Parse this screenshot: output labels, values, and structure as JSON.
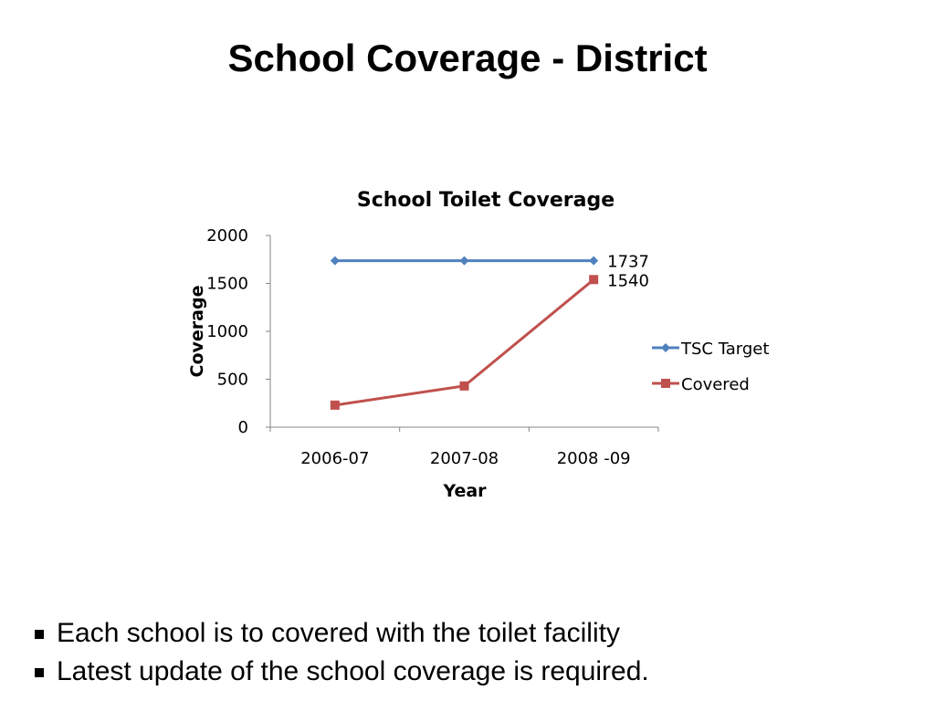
{
  "slide": {
    "title": "School Coverage - District"
  },
  "chart_data": {
    "type": "line",
    "title": "School Toilet Coverage",
    "xlabel": "Year",
    "ylabel": "Coverage",
    "categories": [
      "2006-07",
      "2007-08",
      "2008 -09"
    ],
    "ylim": [
      0,
      2000
    ],
    "yticks": [
      "0",
      "500",
      "1000",
      "1500",
      "2000"
    ],
    "grid": false,
    "legend_position": "right",
    "series": [
      {
        "name": "TSC Target",
        "values": [
          1737,
          1737,
          1737
        ],
        "color": "#4F81BD",
        "marker": "diamond",
        "end_label": "1737"
      },
      {
        "name": "Covered",
        "values": [
          230,
          430,
          1540
        ],
        "color": "#C0504D",
        "marker": "square",
        "end_label": "1540"
      }
    ]
  },
  "bullets": [
    "Each school is to covered with the toilet facility",
    "Latest update of the school coverage is required."
  ]
}
